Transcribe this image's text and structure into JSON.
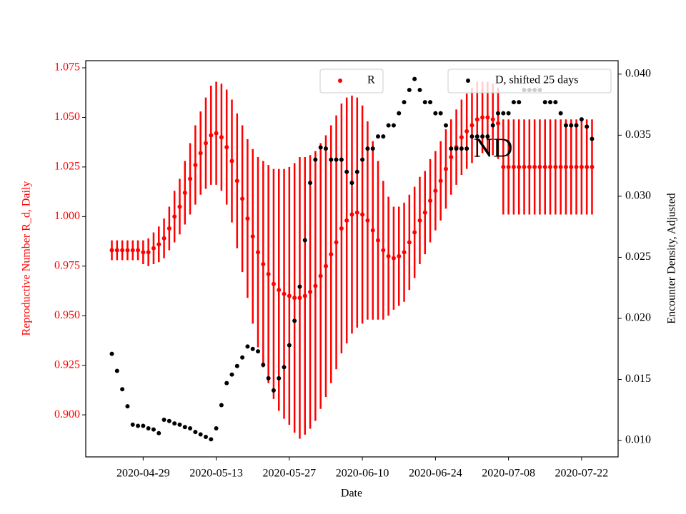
{
  "chart_data": {
    "type": "scatter",
    "xlabel": "Date",
    "ylabel": "Reproductive Number R_d, Daily",
    "y2label": "Encounter Density, Adjusted",
    "annotation": "ND",
    "xlim": [
      "2020-04-18",
      "2020-07-29"
    ],
    "xticks": [
      "2020-04-29",
      "2020-05-13",
      "2020-05-27",
      "2020-06-10",
      "2020-06-24",
      "2020-07-08",
      "2020-07-22"
    ],
    "ylim": [
      0.8788,
      1.0786
    ],
    "yticks": [
      {
        "value": 0.9,
        "label": "0.900"
      },
      0.925,
      {
        "value": 0.95,
        "label": "0.950"
      },
      0.975,
      {
        "value": 1,
        "label": "1.000"
      },
      1.025,
      {
        "value": 1.05,
        "label": "1.050"
      },
      1.075
    ],
    "y2lim": [
      0.00866,
      0.0411
    ],
    "y2ticks": [
      {
        "value": 0.01,
        "label": "0.010"
      },
      0.015,
      {
        "value": 0.02,
        "label": "0.020"
      },
      0.025,
      {
        "value": 0.03,
        "label": "0.030"
      },
      0.035,
      {
        "value": 0.04,
        "label": "0.040"
      }
    ],
    "x": [
      "2020-04-23",
      "2020-04-24",
      "2020-04-25",
      "2020-04-26",
      "2020-04-27",
      "2020-04-28",
      "2020-04-29",
      "2020-04-30",
      "2020-05-01",
      "2020-05-02",
      "2020-05-03",
      "2020-05-04",
      "2020-05-05",
      "2020-05-06",
      "2020-05-07",
      "2020-05-08",
      "2020-05-09",
      "2020-05-10",
      "2020-05-11",
      "2020-05-12",
      "2020-05-13",
      "2020-05-14",
      "2020-05-15",
      "2020-05-16",
      "2020-05-17",
      "2020-05-18",
      "2020-05-19",
      "2020-05-20",
      "2020-05-21",
      "2020-05-22",
      "2020-05-23",
      "2020-05-24",
      "2020-05-25",
      "2020-05-26",
      "2020-05-27",
      "2020-05-28",
      "2020-05-29",
      "2020-05-30",
      "2020-05-31",
      "2020-06-01",
      "2020-06-02",
      "2020-06-03",
      "2020-06-04",
      "2020-06-05",
      "2020-06-06",
      "2020-06-07",
      "2020-06-08",
      "2020-06-09",
      "2020-06-10",
      "2020-06-11",
      "2020-06-12",
      "2020-06-13",
      "2020-06-14",
      "2020-06-15",
      "2020-06-16",
      "2020-06-17",
      "2020-06-18",
      "2020-06-19",
      "2020-06-20",
      "2020-06-21",
      "2020-06-22",
      "2020-06-23",
      "2020-06-24",
      "2020-06-25",
      "2020-06-26",
      "2020-06-27",
      "2020-06-28",
      "2020-06-29",
      "2020-06-30",
      "2020-07-01",
      "2020-07-02",
      "2020-07-03",
      "2020-07-04",
      "2020-07-05",
      "2020-07-06",
      "2020-07-07",
      "2020-07-08",
      "2020-07-09",
      "2020-07-10",
      "2020-07-11",
      "2020-07-12",
      "2020-07-13",
      "2020-07-14",
      "2020-07-15",
      "2020-07-16",
      "2020-07-17",
      "2020-07-18",
      "2020-07-19",
      "2020-07-20",
      "2020-07-21",
      "2020-07-22",
      "2020-07-23",
      "2020-07-24"
    ],
    "series": [
      {
        "name": "R",
        "color": "#ff0000",
        "axis": "y",
        "values": [
          0.983,
          0.983,
          0.983,
          0.983,
          0.983,
          0.983,
          0.982,
          0.982,
          0.984,
          0.986,
          0.989,
          0.994,
          1.0,
          1.005,
          1.012,
          1.019,
          1.026,
          1.032,
          1.037,
          1.041,
          1.042,
          1.04,
          1.035,
          1.028,
          1.018,
          1.009,
          0.999,
          0.99,
          0.982,
          0.976,
          0.971,
          0.966,
          0.963,
          0.961,
          0.96,
          0.959,
          0.959,
          0.96,
          0.962,
          0.965,
          0.97,
          0.975,
          0.981,
          0.987,
          0.994,
          0.998,
          1.001,
          1.002,
          1.001,
          0.998,
          0.993,
          0.988,
          0.983,
          0.98,
          0.979,
          0.98,
          0.982,
          0.987,
          0.992,
          0.998,
          1.002,
          1.008,
          1.013,
          1.018,
          1.024,
          1.03,
          1.035,
          1.04,
          1.043,
          1.046,
          1.049,
          1.05,
          1.05,
          1.049,
          1.047,
          1.025,
          1.025,
          1.025,
          1.025,
          1.025,
          1.025,
          1.025,
          1.025,
          1.025,
          1.025,
          1.025,
          1.025,
          1.025,
          1.025,
          1.025,
          1.025,
          1.025,
          1.025
        ],
        "errors": [
          0.005,
          0.005,
          0.005,
          0.005,
          0.005,
          0.005,
          0.006,
          0.007,
          0.008,
          0.009,
          0.01,
          0.011,
          0.013,
          0.014,
          0.016,
          0.018,
          0.02,
          0.021,
          0.023,
          0.025,
          0.026,
          0.027,
          0.029,
          0.031,
          0.034,
          0.037,
          0.04,
          0.044,
          0.048,
          0.052,
          0.055,
          0.058,
          0.061,
          0.063,
          0.065,
          0.068,
          0.071,
          0.07,
          0.069,
          0.068,
          0.067,
          0.066,
          0.065,
          0.064,
          0.063,
          0.062,
          0.06,
          0.058,
          0.055,
          0.05,
          0.045,
          0.04,
          0.035,
          0.03,
          0.026,
          0.025,
          0.025,
          0.024,
          0.023,
          0.022,
          0.021,
          0.021,
          0.02,
          0.02,
          0.02,
          0.019,
          0.019,
          0.019,
          0.019,
          0.019,
          0.019,
          0.018,
          0.018,
          0.018,
          0.018,
          0.024,
          0.024,
          0.024,
          0.024,
          0.024,
          0.024,
          0.024,
          0.024,
          0.024,
          0.024,
          0.024,
          0.024,
          0.024,
          0.024,
          0.024,
          0.024,
          0.024,
          0.024
        ]
      },
      {
        "name": "D, shifted 25 days",
        "color": "#000000",
        "axis": "y2",
        "values": [
          0.0171,
          0.0157,
          0.0142,
          0.0128,
          0.0113,
          0.0112,
          0.0112,
          0.011,
          0.0109,
          0.0106,
          0.0117,
          0.0116,
          0.0114,
          0.0113,
          0.0111,
          0.011,
          0.0107,
          0.0105,
          0.0103,
          0.0101,
          0.011,
          0.0129,
          0.0147,
          0.0154,
          0.0161,
          0.0168,
          0.0177,
          0.0175,
          0.0173,
          0.0162,
          0.0151,
          0.0141,
          0.0151,
          0.016,
          0.0178,
          0.0198,
          0.0226,
          0.0264,
          0.0311,
          0.033,
          0.034,
          0.0339,
          0.033,
          0.033,
          0.033,
          0.032,
          0.0311,
          0.032,
          0.033,
          0.0339,
          0.0339,
          0.0349,
          0.0349,
          0.0358,
          0.0358,
          0.0368,
          0.0377,
          0.0387,
          0.0396,
          0.0387,
          0.0377,
          0.0377,
          0.0368,
          0.0368,
          0.0358,
          0.0339,
          0.0339,
          0.0339,
          0.0339,
          0.0349,
          0.0349,
          0.0349,
          0.0349,
          0.0358,
          0.0368,
          0.0368,
          0.0368,
          0.0377,
          0.0377,
          0.0387,
          0.0387,
          0.0387,
          0.0387,
          0.0377,
          0.0377,
          0.0377,
          0.0368,
          0.0358,
          0.0358,
          0.0358,
          0.0363,
          0.0357,
          0.0347
        ]
      }
    ]
  }
}
